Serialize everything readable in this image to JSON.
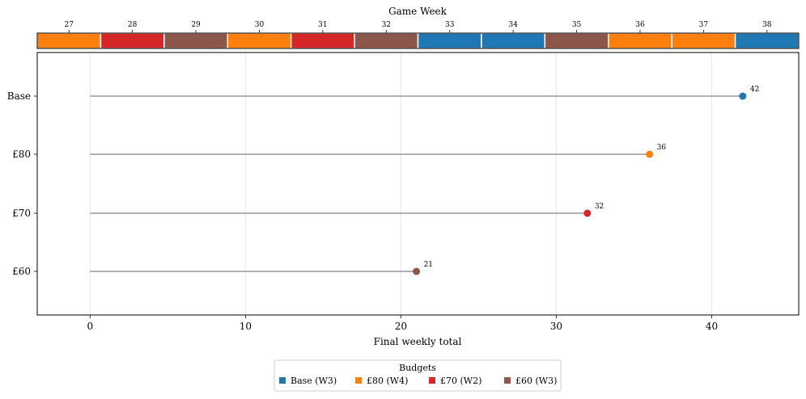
{
  "chart_data": [
    {
      "type": "timeline",
      "xlabel": "Game Week",
      "weeks": [
        27,
        28,
        29,
        30,
        31,
        32,
        33,
        34,
        35,
        36,
        37,
        38
      ],
      "budget_by_week": [
        "£80",
        "£70",
        "£60",
        "£80",
        "£70",
        "£60",
        "Base",
        "Base",
        "£60",
        "£80",
        "£80",
        "Base"
      ]
    },
    {
      "type": "lollipop",
      "xlabel": "Final weekly total",
      "categories": [
        "Base",
        "£80",
        "£70",
        "£60"
      ],
      "values": [
        42,
        36,
        32,
        21
      ],
      "xlim": [
        -3.4,
        45.6
      ],
      "xticks": [
        0,
        10,
        20,
        30,
        40
      ],
      "grid": "vertical",
      "legend": {
        "title": "Budgets",
        "placement": "bottom-center",
        "entries": [
          "Base (W3)",
          "£80 (W4)",
          "£70 (W2)",
          "£60 (W3)"
        ]
      }
    }
  ],
  "colors": {
    "Base": "#1f77b4",
    "£80": "#ff7f0e",
    "£70": "#d62728",
    "£60": "#8c564b",
    "stem": "#b0b0b0",
    "grid": "#e6e6e6"
  }
}
